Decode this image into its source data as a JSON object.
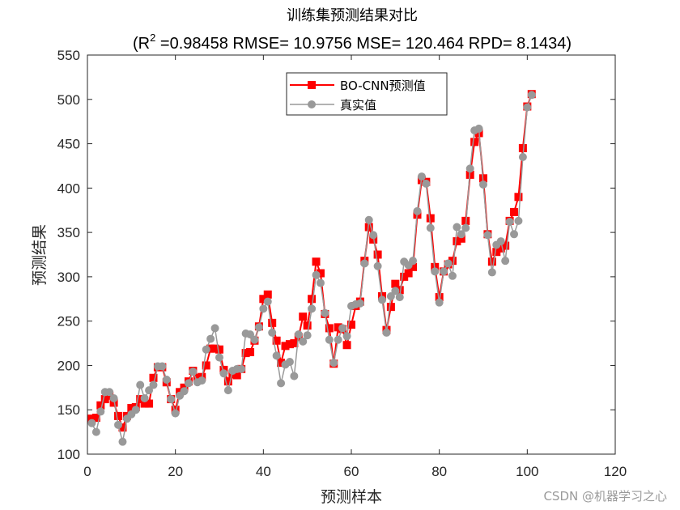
{
  "chart_data": {
    "type": "line",
    "title": "训练集预测结果对比",
    "subtitle_prefix": "(R",
    "subtitle_sup": "2",
    "subtitle_rest": " =0.98458 RMSE= 10.9756 MSE= 120.464 RPD= 8.1434)",
    "xlabel": "预测样本",
    "ylabel": "预测结果",
    "xlim": [
      0,
      120
    ],
    "ylim": [
      100,
      550
    ],
    "xticks": [
      0,
      20,
      40,
      60,
      80,
      100,
      120
    ],
    "yticks": [
      100,
      150,
      200,
      250,
      300,
      350,
      400,
      450,
      500,
      550
    ],
    "legend_position": "top-center",
    "series": [
      {
        "name": "BO-CNN预测值",
        "color": "#ff0000",
        "marker": "square",
        "values": [
          140,
          141,
          155,
          162,
          166,
          158,
          143,
          130,
          143,
          152,
          153,
          162,
          157,
          157,
          186,
          198,
          198,
          181,
          162,
          150,
          170,
          175,
          182,
          194,
          186,
          187,
          200,
          219,
          219,
          218,
          195,
          182,
          190,
          189,
          196,
          214,
          215,
          228,
          244,
          275,
          280,
          248,
          228,
          203,
          222,
          224,
          225,
          232,
          255,
          245,
          275,
          317,
          304,
          258,
          242,
          202,
          243,
          241,
          223,
          246,
          267,
          272,
          318,
          356,
          342,
          325,
          278,
          240,
          266,
          292,
          285,
          300,
          304,
          311,
          370,
          409,
          407,
          366,
          311,
          277,
          306,
          314,
          318,
          340,
          343,
          363,
          415,
          452,
          462,
          411,
          348,
          317,
          328,
          332,
          335,
          363,
          373,
          390,
          445,
          492,
          506
        ]
      },
      {
        "name": "真实值",
        "color": "#999999",
        "marker": "circle",
        "values": [
          135,
          125,
          148,
          170,
          170,
          163,
          133,
          114,
          140,
          145,
          150,
          178,
          163,
          172,
          178,
          199,
          199,
          184,
          162,
          146,
          166,
          171,
          180,
          193,
          181,
          183,
          218,
          230,
          242,
          209,
          191,
          172,
          194,
          196,
          196,
          236,
          235,
          229,
          243,
          264,
          272,
          237,
          211,
          180,
          201,
          204,
          188,
          235,
          227,
          234,
          264,
          302,
          293,
          259,
          229,
          203,
          229,
          242,
          233,
          267,
          269,
          270,
          315,
          364,
          347,
          312,
          274,
          237,
          278,
          284,
          277,
          317,
          313,
          318,
          374,
          413,
          405,
          355,
          306,
          271,
          306,
          315,
          301,
          356,
          348,
          355,
          422,
          465,
          467,
          404,
          347,
          305,
          336,
          340,
          318,
          362,
          348,
          363,
          435,
          491,
          505
        ]
      }
    ],
    "watermark": "CSDN @机器学习之心"
  }
}
